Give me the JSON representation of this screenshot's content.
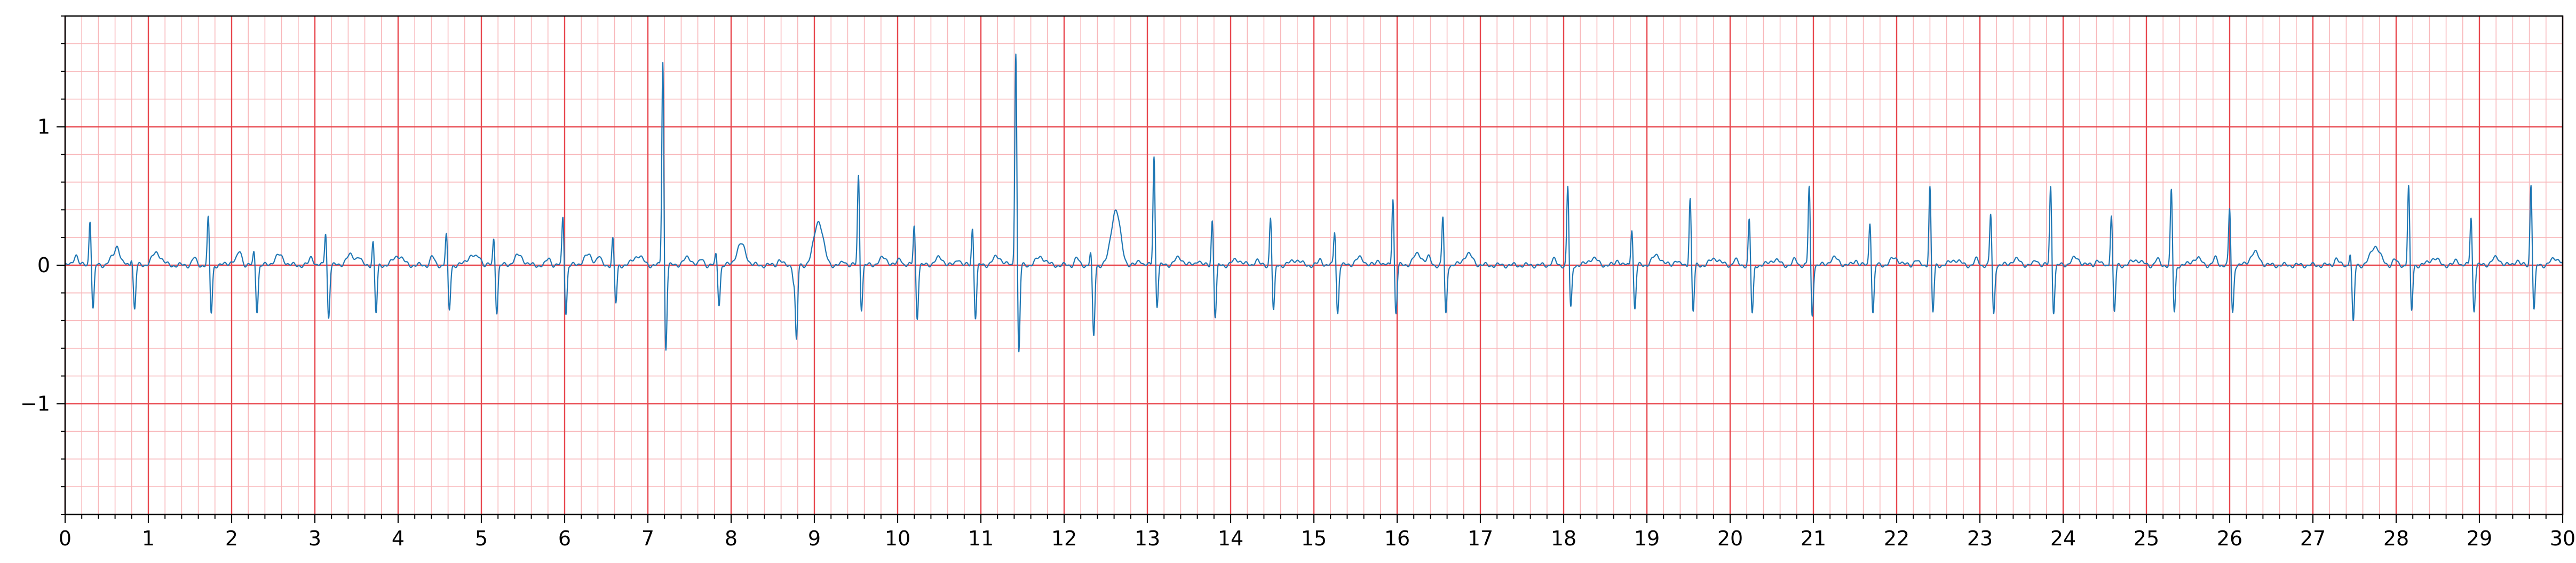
{
  "chart_data": {
    "type": "line",
    "title": "",
    "xlabel": "",
    "ylabel": "",
    "xlim": [
      0,
      30
    ],
    "ylim": [
      -1.8,
      1.8
    ],
    "grid": true,
    "legend": "none",
    "x_ticks": [
      0,
      1,
      2,
      3,
      4,
      5,
      6,
      7,
      8,
      9,
      10,
      11,
      12,
      13,
      14,
      15,
      16,
      17,
      18,
      19,
      20,
      21,
      22,
      23,
      24,
      25,
      26,
      27,
      28,
      29,
      30
    ],
    "x_tick_labels": [
      "0",
      "1",
      "2",
      "3",
      "4",
      "5",
      "6",
      "7",
      "8",
      "9",
      "10",
      "11",
      "12",
      "13",
      "14",
      "15",
      "16",
      "17",
      "18",
      "19",
      "20",
      "21",
      "22",
      "23",
      "24",
      "25",
      "26",
      "27",
      "28",
      "29",
      "30"
    ],
    "y_ticks": [
      -1,
      0,
      1
    ],
    "y_tick_labels": [
      "−1",
      "0",
      "1"
    ],
    "x_minor_step": 0.2,
    "y_minor_step": 0.2,
    "line_color": "#1f77b4",
    "major_grid_color": "#e8474e",
    "minor_grid_color": "#f8b7ba",
    "beats": [
      {
        "t": 0.3,
        "r": 0.34,
        "s": -0.32,
        "p": 0.08,
        "tw": 0.07
      },
      {
        "t": 0.8,
        "r": 0.06,
        "s": -0.32,
        "p": 0.08,
        "tw": 0.09
      },
      {
        "t": 1.72,
        "r": 0.35,
        "s": -0.35,
        "p": 0.05,
        "tw": 0.03
      },
      {
        "t": 2.27,
        "r": 0.1,
        "s": -0.33,
        "p": 0.09,
        "tw": 0.07
      },
      {
        "t": 3.13,
        "r": 0.25,
        "s": -0.38,
        "p": 0.06,
        "tw": 0.07
      },
      {
        "t": 3.7,
        "r": 0.18,
        "s": -0.35,
        "p": 0.05,
        "tw": 0.07
      },
      {
        "t": 4.58,
        "r": 0.23,
        "s": -0.33,
        "p": 0.06,
        "tw": 0.07
      },
      {
        "t": 5.15,
        "r": 0.2,
        "s": -0.34,
        "p": 0.05,
        "tw": 0.07
      },
      {
        "t": 5.98,
        "r": 0.36,
        "s": -0.35,
        "p": 0.05,
        "tw": 0.07
      },
      {
        "t": 6.58,
        "r": 0.2,
        "s": -0.28,
        "p": 0.06,
        "tw": 0.07
      },
      {
        "t": 7.18,
        "r": 1.5,
        "s": -0.62,
        "p": 0.0,
        "tw": 0.05
      },
      {
        "t": 7.82,
        "r": 0.08,
        "s": -0.28,
        "p": 0.04,
        "tw": 0.15
      },
      {
        "t": 8.75,
        "r": -0.1,
        "s": -0.55,
        "p": 0.04,
        "tw": 0.32
      },
      {
        "t": 9.53,
        "r": 0.66,
        "s": -0.32,
        "p": 0.03,
        "tw": 0.05
      },
      {
        "t": 10.2,
        "r": 0.3,
        "s": -0.38,
        "p": 0.05,
        "tw": 0.05
      },
      {
        "t": 10.9,
        "r": 0.28,
        "s": -0.38,
        "p": 0.05,
        "tw": 0.06
      },
      {
        "t": 11.42,
        "r": 1.57,
        "s": -0.65,
        "p": 0.0,
        "tw": 0.06
      },
      {
        "t": 12.32,
        "r": 0.1,
        "s": -0.52,
        "p": 0.05,
        "tw": 0.4
      },
      {
        "t": 13.08,
        "r": 0.8,
        "s": -0.3,
        "p": 0.04,
        "tw": 0.05
      },
      {
        "t": 13.78,
        "r": 0.34,
        "s": -0.38,
        "p": 0.04,
        "tw": 0.04
      },
      {
        "t": 14.48,
        "r": 0.36,
        "s": -0.34,
        "p": 0.04,
        "tw": 0.04
      },
      {
        "t": 15.25,
        "r": 0.26,
        "s": -0.35,
        "p": 0.04,
        "tw": 0.05
      },
      {
        "t": 15.95,
        "r": 0.5,
        "s": -0.35,
        "p": 0.04,
        "tw": 0.08
      },
      {
        "t": 16.55,
        "r": 0.36,
        "s": -0.36,
        "p": 0.05,
        "tw": 0.08
      },
      {
        "t": 18.05,
        "r": 0.58,
        "s": -0.32,
        "p": 0.04,
        "tw": 0.05
      },
      {
        "t": 18.82,
        "r": 0.28,
        "s": -0.32,
        "p": 0.04,
        "tw": 0.07
      },
      {
        "t": 19.52,
        "r": 0.5,
        "s": -0.34,
        "p": 0.04,
        "tw": 0.05
      },
      {
        "t": 20.23,
        "r": 0.34,
        "s": -0.36,
        "p": 0.04,
        "tw": 0.04
      },
      {
        "t": 20.95,
        "r": 0.58,
        "s": -0.37,
        "p": 0.04,
        "tw": 0.05
      },
      {
        "t": 21.68,
        "r": 0.33,
        "s": -0.35,
        "p": 0.04,
        "tw": 0.05
      },
      {
        "t": 22.4,
        "r": 0.58,
        "s": -0.35,
        "p": 0.04,
        "tw": 0.04
      },
      {
        "t": 23.13,
        "r": 0.38,
        "s": -0.36,
        "p": 0.04,
        "tw": 0.04
      },
      {
        "t": 23.85,
        "r": 0.58,
        "s": -0.34,
        "p": 0.04,
        "tw": 0.05
      },
      {
        "t": 24.58,
        "r": 0.38,
        "s": -0.35,
        "p": 0.04,
        "tw": 0.04
      },
      {
        "t": 25.3,
        "r": 0.55,
        "s": -0.35,
        "p": 0.04,
        "tw": 0.05
      },
      {
        "t": 26.0,
        "r": 0.42,
        "s": -0.35,
        "p": 0.05,
        "tw": 0.09
      },
      {
        "t": 27.45,
        "r": 0.1,
        "s": -0.42,
        "p": 0.05,
        "tw": 0.14
      },
      {
        "t": 28.15,
        "r": 0.58,
        "s": -0.34,
        "p": 0.04,
        "tw": 0.05
      },
      {
        "t": 28.9,
        "r": 0.36,
        "s": -0.33,
        "p": 0.04,
        "tw": 0.05
      },
      {
        "t": 29.62,
        "r": 0.6,
        "s": -0.33,
        "p": 0.04,
        "tw": 0.05
      }
    ]
  }
}
